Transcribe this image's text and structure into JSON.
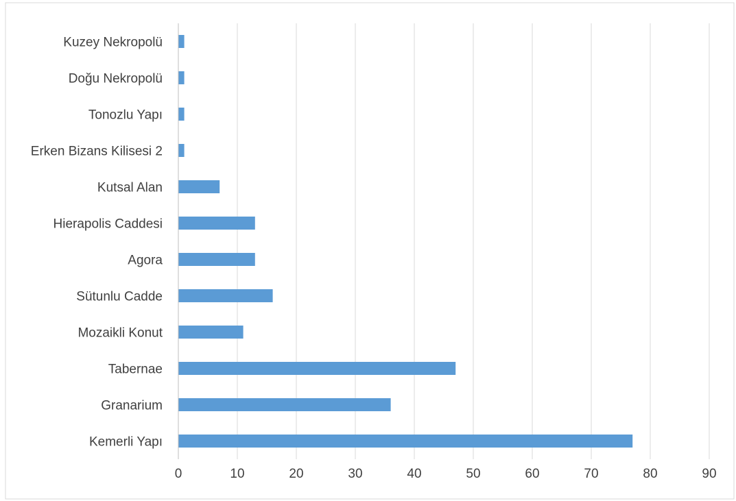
{
  "chart_data": {
    "type": "bar",
    "orientation": "horizontal",
    "title": "",
    "xlabel": "",
    "ylabel": "",
    "categories": [
      "Kemerli Yapı",
      "Granarium",
      "Tabernae",
      "Mozaikli Konut",
      "Sütunlu Cadde",
      "Agora",
      "Hierapolis Caddesi",
      "Kutsal Alan",
      "Erken Bizans Kilisesi 2",
      "Tonozlu Yapı",
      "Doğu Nekropolü",
      "Kuzey Nekropolü"
    ],
    "values": [
      77,
      36,
      47,
      11,
      16,
      13,
      13,
      7,
      1,
      1,
      1,
      1
    ],
    "xlim": [
      0,
      90
    ],
    "ticks": [
      "0",
      "10",
      "20",
      "30",
      "40",
      "50",
      "60",
      "70",
      "80",
      "90"
    ],
    "grid": "vertical",
    "bar_color": "#5b9bd5",
    "gridline_color": "#d9d9d9",
    "axis_color": "#bfbfbf",
    "border_color": "#d9d9d9"
  }
}
